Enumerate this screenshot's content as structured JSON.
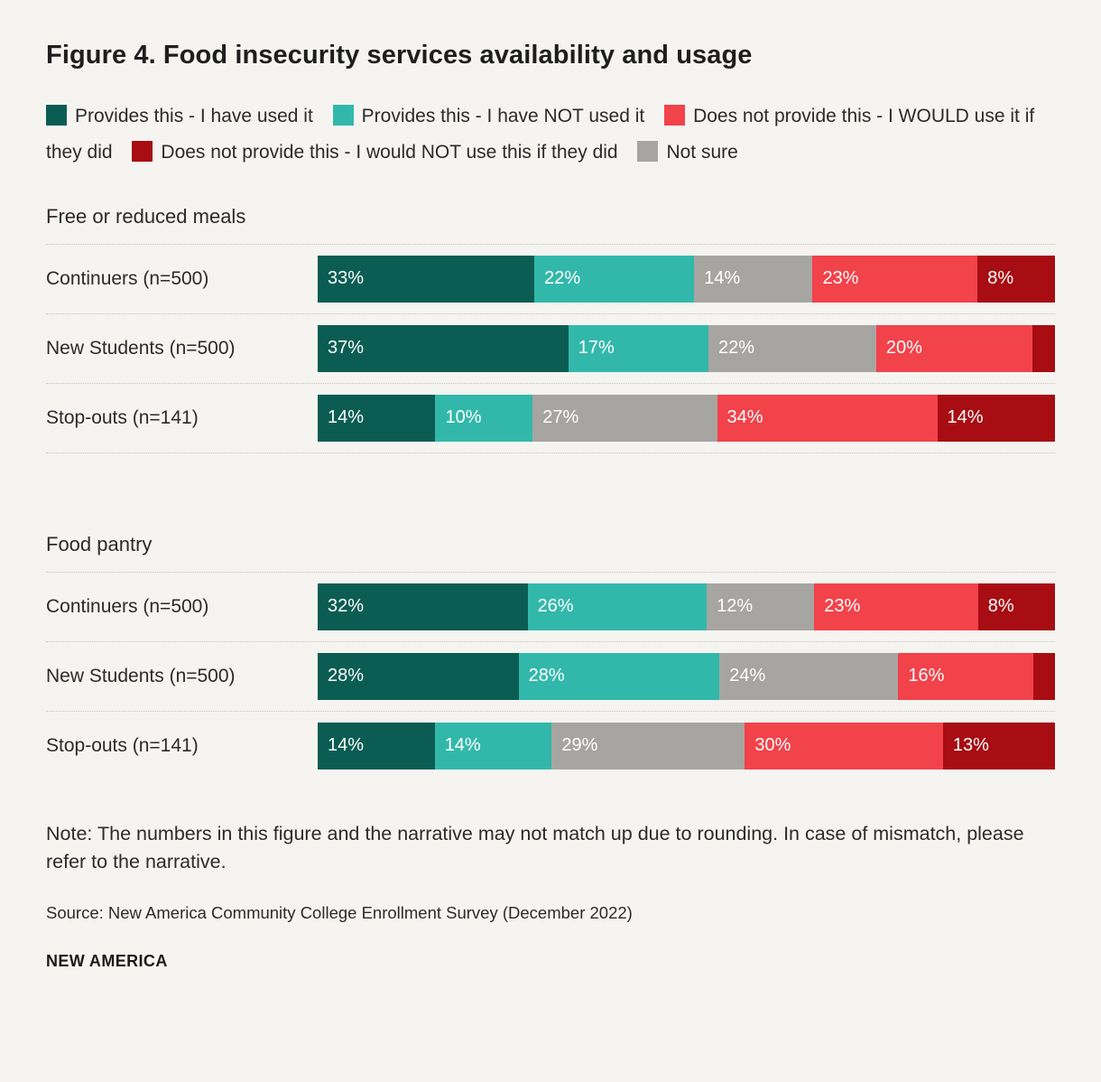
{
  "title": "Figure 4. Food insecurity services availability and usage",
  "legend": [
    {
      "label": "Provides this - I have used it",
      "color": "#0b5d53"
    },
    {
      "label": "Provides this - I have NOT used it",
      "color": "#32b8aa"
    },
    {
      "label": "Does not provide this - I WOULD use it if they did",
      "color": "#f2424a"
    },
    {
      "label": "Does not provide this - I would NOT use this if they did",
      "color": "#a70d12"
    },
    {
      "label": "Not sure",
      "color": "#a7a5a2"
    }
  ],
  "chart_data": {
    "type": "bar",
    "orientation": "horizontal",
    "stacked": true,
    "unit": "%",
    "x_range": [
      0,
      100
    ],
    "grid": false,
    "legend_position": "top",
    "segments": [
      {
        "key": "provides-used",
        "name": "Provides this - I have used it",
        "color": "#0b5d53"
      },
      {
        "key": "provides-not-used",
        "name": "Provides this - I have NOT used it",
        "color": "#32b8aa"
      },
      {
        "key": "not-sure",
        "name": "Not sure",
        "color": "#a7a5a2"
      },
      {
        "key": "not-provide-would-use",
        "name": "Does not provide this - I WOULD use it if they did",
        "color": "#f2424a"
      },
      {
        "key": "not-provide-would-not-use",
        "name": "Does not provide this - I would NOT use this if they did",
        "color": "#a70d12"
      }
    ],
    "groups": [
      {
        "label": "Free or reduced meals",
        "rows": [
          {
            "label": "Continuers (n=500)",
            "values": [
              33,
              22,
              14,
              23,
              8
            ],
            "value_labels": [
              "33%",
              "22%",
              "14%",
              "23%",
              "8%"
            ]
          },
          {
            "label": "New Students (n=500)",
            "values": [
              37,
              17,
              22,
              20,
              4
            ],
            "value_labels": [
              "37%",
              "17%",
              "22%",
              "20%",
              ""
            ]
          },
          {
            "label": "Stop-outs (n=141)",
            "values": [
              14,
              10,
              27,
              34,
              14
            ],
            "value_labels": [
              "14%",
              "10%",
              "27%",
              "34%",
              "14%"
            ]
          }
        ]
      },
      {
        "label": "Food pantry",
        "rows": [
          {
            "label": "Continuers (n=500)",
            "values": [
              32,
              26,
              12,
              23,
              8
            ],
            "value_labels": [
              "32%",
              "26%",
              "12%",
              "23%",
              "8%"
            ]
          },
          {
            "label": "New Students (n=500)",
            "values": [
              28,
              28,
              24,
              16,
              4
            ],
            "value_labels": [
              "28%",
              "28%",
              "24%",
              "16%",
              ""
            ]
          },
          {
            "label": "Stop-outs (n=141)",
            "values": [
              14,
              14,
              29,
              30,
              13
            ],
            "value_labels": [
              "14%",
              "14%",
              "29%",
              "30%",
              "13%"
            ]
          }
        ]
      }
    ]
  },
  "note": "Note: The numbers in this figure and the narrative may not match up due to rounding. In case of mismatch, please refer to the narrative.",
  "source": "Source: New America Community College Enrollment Survey (December 2022)",
  "footer_brand": "NEW AMERICA"
}
